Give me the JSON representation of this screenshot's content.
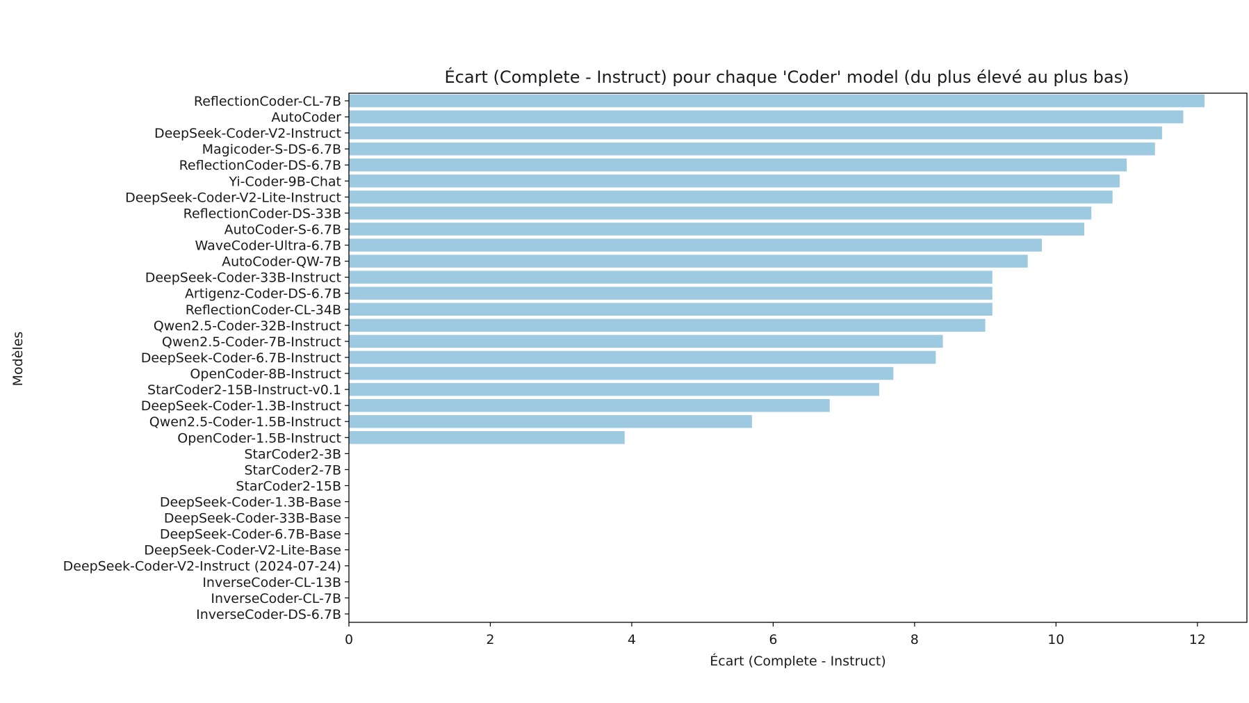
{
  "chart_data": {
    "type": "bar",
    "orientation": "horizontal",
    "title": "Écart (Complete - Instruct) pour chaque 'Coder' model (du plus élevé au plus bas)",
    "xlabel": "Écart (Complete - Instruct)",
    "ylabel": "Modèles",
    "xlim": [
      0,
      12.7
    ],
    "xticks": [
      0,
      2,
      4,
      6,
      8,
      10,
      12
    ],
    "grid": false,
    "bar_color": "#9ecae1",
    "categories": [
      "ReflectionCoder-CL-7B",
      "AutoCoder",
      "DeepSeek-Coder-V2-Instruct",
      "Magicoder-S-DS-6.7B",
      "ReflectionCoder-DS-6.7B",
      "Yi-Coder-9B-Chat",
      "DeepSeek-Coder-V2-Lite-Instruct",
      "ReflectionCoder-DS-33B",
      "AutoCoder-S-6.7B",
      "WaveCoder-Ultra-6.7B",
      "AutoCoder-QW-7B",
      "DeepSeek-Coder-33B-Instruct",
      "Artigenz-Coder-DS-6.7B",
      "ReflectionCoder-CL-34B",
      "Qwen2.5-Coder-32B-Instruct",
      "Qwen2.5-Coder-7B-Instruct",
      "DeepSeek-Coder-6.7B-Instruct",
      "OpenCoder-8B-Instruct",
      "StarCoder2-15B-Instruct-v0.1",
      "DeepSeek-Coder-1.3B-Instruct",
      "Qwen2.5-Coder-1.5B-Instruct",
      "OpenCoder-1.5B-Instruct",
      "StarCoder2-3B",
      "StarCoder2-7B",
      "StarCoder2-15B",
      "DeepSeek-Coder-1.3B-Base",
      "DeepSeek-Coder-33B-Base",
      "DeepSeek-Coder-6.7B-Base",
      "DeepSeek-Coder-V2-Lite-Base",
      "DeepSeek-Coder-V2-Instruct (2024-07-24)",
      "InverseCoder-CL-13B",
      "InverseCoder-CL-7B",
      "InverseCoder-DS-6.7B"
    ],
    "values": [
      12.1,
      11.8,
      11.5,
      11.4,
      11.0,
      10.9,
      10.8,
      10.5,
      10.4,
      9.8,
      9.6,
      9.1,
      9.1,
      9.1,
      9.0,
      8.4,
      8.3,
      7.7,
      7.5,
      6.8,
      5.7,
      3.9,
      0,
      0,
      0,
      0,
      0,
      0,
      0,
      0,
      0,
      0,
      0
    ]
  }
}
